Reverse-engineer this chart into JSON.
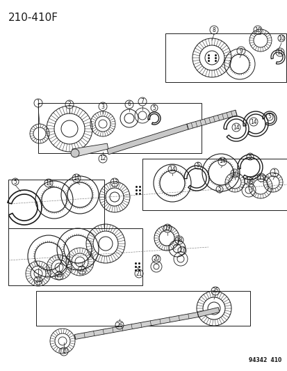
{
  "title": "210-410F",
  "catalog_number": "94342  410",
  "bg_color": "#ffffff",
  "col": "#1a1a1a",
  "title_fontsize": 11,
  "catalog_fontsize": 5.5
}
